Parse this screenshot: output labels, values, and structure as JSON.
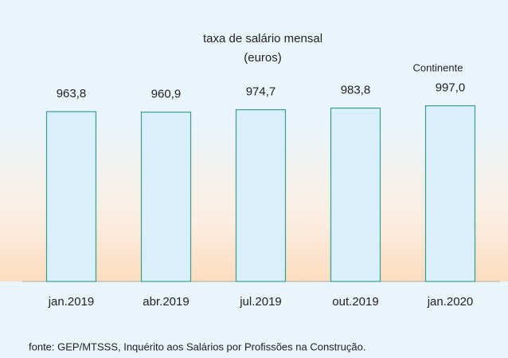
{
  "chart_data": {
    "type": "bar",
    "title": "taxa de salário mensal",
    "subtitle": "(euros)",
    "annotation": "Continente",
    "source": "fonte: GEP/MTSSS, Inquérito aos Salários por Profissões na Construção.",
    "categories": [
      "jan.2019",
      "abr.2019",
      "jul.2019",
      "out.2019",
      "jan.2020"
    ],
    "values": [
      963.8,
      960.9,
      974.7,
      983.8,
      997.0
    ],
    "value_labels": [
      "963,8",
      "960,9",
      "974,7",
      "983,8",
      "997,0"
    ],
    "color": "#d9f0fc",
    "edge_color": "#3a9e8a",
    "ylim": [
      0,
      1000
    ]
  }
}
